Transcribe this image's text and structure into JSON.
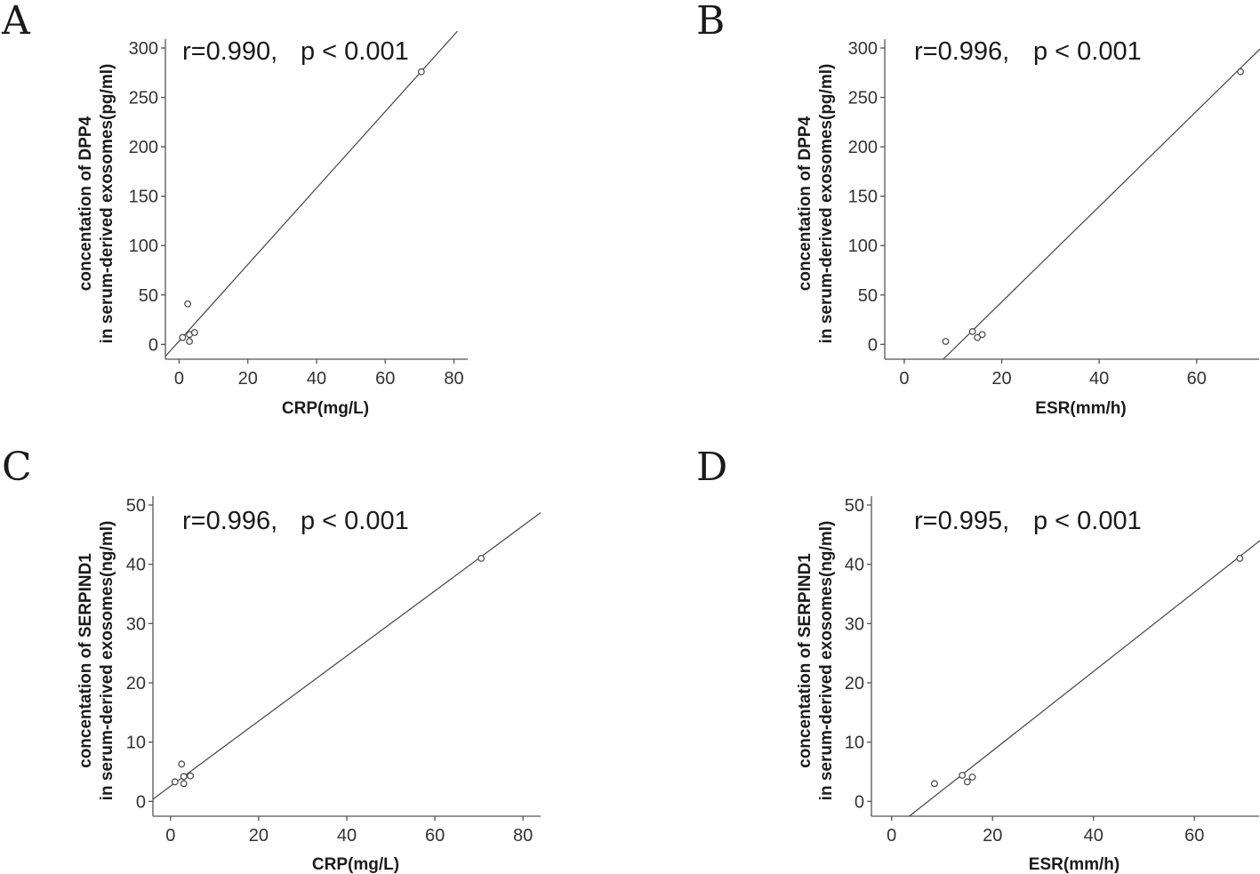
{
  "chart_data": [
    {
      "type": "scatter",
      "panel_label": "A",
      "stat_r": "r=0.990,",
      "stat_p": "p < 0.001",
      "xlabel": "CRP(mg/L)",
      "ylabel_line1": "concentation of DPP4",
      "ylabel_line2": "in serum-derived exosomes(pg/ml)",
      "xlim": [
        -4,
        84
      ],
      "ylim": [
        -15,
        318
      ],
      "xticks": [
        0,
        20,
        40,
        60,
        80
      ],
      "yticks": [
        0,
        50,
        100,
        150,
        200,
        250,
        300
      ],
      "points": [
        [
          1,
          7
        ],
        [
          2.5,
          41
        ],
        [
          3,
          10
        ],
        [
          3,
          3
        ],
        [
          4.5,
          12
        ],
        [
          70.5,
          276
        ]
      ],
      "fit_line": [
        [
          -4.5,
          -14
        ],
        [
          81,
          317
        ]
      ]
    },
    {
      "type": "scatter",
      "panel_label": "B",
      "stat_r": "r=0.996,",
      "stat_p": "p < 0.001",
      "xlabel": "ESR(mm/h)",
      "ylabel_line1": "concentation of DPP4",
      "ylabel_line2": "in serum-derived exosomes(pg/ml)",
      "xlim": [
        -4,
        73
      ],
      "ylim": [
        -15,
        318
      ],
      "xticks": [
        0,
        20,
        40,
        60
      ],
      "yticks": [
        0,
        50,
        100,
        150,
        200,
        250,
        300
      ],
      "points": [
        [
          8.5,
          3
        ],
        [
          14,
          13
        ],
        [
          15,
          7
        ],
        [
          16,
          10
        ],
        [
          69,
          276
        ]
      ],
      "fit_line": [
        [
          8,
          -15
        ],
        [
          73,
          299
        ]
      ]
    },
    {
      "type": "scatter",
      "panel_label": "C",
      "stat_r": "r=0.996,",
      "stat_p": "p < 0.001",
      "xlabel": "CRP(mg/L)",
      "ylabel_line1": "concentation of SERPIND1",
      "ylabel_line2": "in serum-derived exosomes(ng/ml)",
      "xlim": [
        -4,
        84
      ],
      "ylim": [
        -2.5,
        53
      ],
      "xticks": [
        0,
        20,
        40,
        60,
        80
      ],
      "yticks": [
        0,
        10,
        20,
        30,
        40,
        50
      ],
      "points": [
        [
          1,
          3.3
        ],
        [
          2.5,
          6.3
        ],
        [
          3,
          3
        ],
        [
          3,
          4.2
        ],
        [
          4.5,
          4.3
        ],
        [
          70.5,
          41
        ]
      ],
      "fit_line": [
        [
          -4.5,
          0.1
        ],
        [
          84,
          48.7
        ]
      ]
    },
    {
      "type": "scatter",
      "panel_label": "D",
      "stat_r": "r=0.995,",
      "stat_p": "p < 0.001",
      "xlabel": "ESR(mm/h)",
      "ylabel_line1": "concentation of SERPIND1",
      "ylabel_line2": "in serum-derived exosomes(ng/ml)",
      "xlim": [
        -4,
        73
      ],
      "ylim": [
        -2.5,
        53
      ],
      "xticks": [
        0,
        20,
        40,
        60
      ],
      "yticks": [
        0,
        10,
        20,
        30,
        40,
        50
      ],
      "points": [
        [
          8.5,
          3
        ],
        [
          14,
          4.4
        ],
        [
          15,
          3.3
        ],
        [
          16,
          4.1
        ],
        [
          69,
          41
        ]
      ],
      "fit_line": [
        [
          3.5,
          -2.5
        ],
        [
          73,
          44
        ]
      ]
    }
  ]
}
